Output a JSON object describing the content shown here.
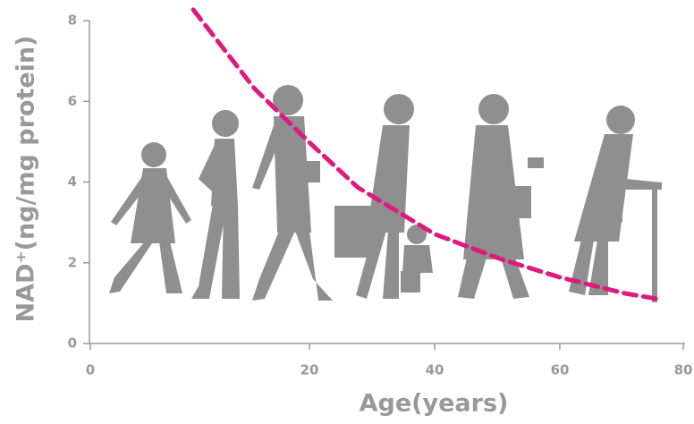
{
  "chart_data": {
    "type": "line",
    "x_label": "Age(years)",
    "y_label": "NAD⁺(ng/mg protein)",
    "x": [
      9.4,
      15,
      20,
      27.7,
      40,
      50.6,
      60,
      70.6,
      76.4
    ],
    "series": [
      {
        "color": "#e0197d",
        "values": [
          8.27,
          6.31,
          4.98,
          3.87,
          2.71,
          2.09,
          1.64,
          1.24,
          1.09
        ]
      }
    ],
    "xlim": [
      0,
      80
    ],
    "xticks": [
      0,
      20,
      40,
      60,
      80
    ],
    "ylim": [
      0,
      8
    ],
    "yticks": [
      0,
      2,
      4,
      6,
      8
    ]
  }
}
